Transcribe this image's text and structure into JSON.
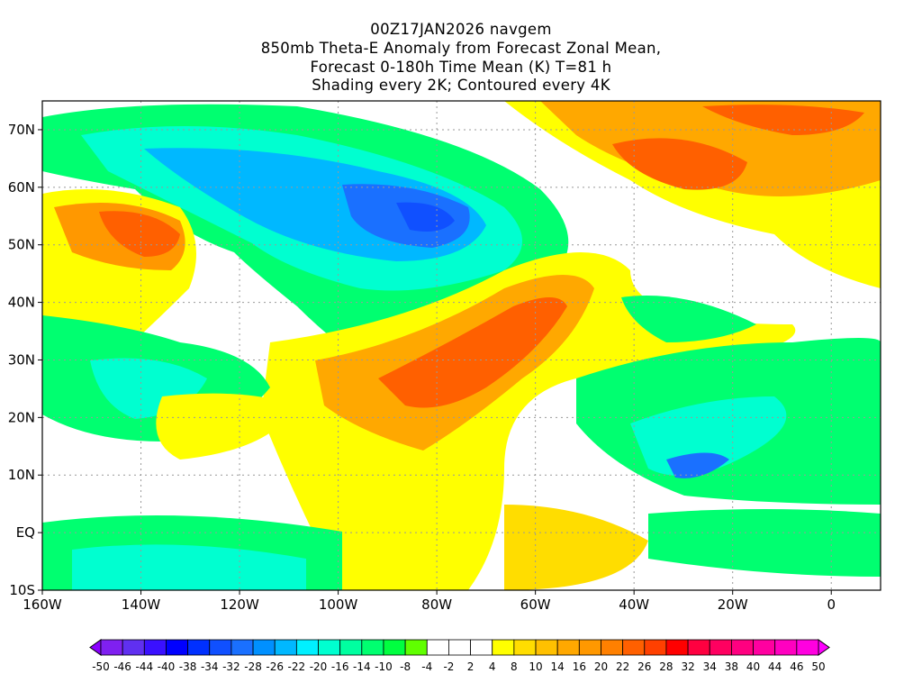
{
  "title": {
    "line1": "00Z17JAN2026 navgem",
    "line2": "850mb Theta-E Anomaly from Forecast Zonal Mean,",
    "line3": "Forecast 0-180h Time Mean (K) T=81 h",
    "line4": "Shading every 2K; Contoured every 4K"
  },
  "axes": {
    "lon_labels": [
      "160W",
      "140W",
      "120W",
      "100W",
      "80W",
      "60W",
      "40W",
      "20W",
      "0"
    ],
    "lon_values": [
      -160,
      -140,
      -120,
      -100,
      -80,
      -60,
      -40,
      -20,
      0
    ],
    "lat_labels": [
      "70N",
      "60N",
      "50N",
      "40N",
      "30N",
      "20N",
      "10N",
      "EQ",
      "10S"
    ],
    "lat_values": [
      70,
      60,
      50,
      40,
      30,
      20,
      10,
      0,
      -10
    ],
    "lon_range": [
      -160,
      10
    ],
    "lat_range": [
      -10,
      75
    ]
  },
  "colorbar": {
    "labels": [
      "-50",
      "-46",
      "-44",
      "-40",
      "-38",
      "-34",
      "-32",
      "-28",
      "-26",
      "-22",
      "-20",
      "-16",
      "-14",
      "-10",
      "-8",
      "-4",
      "-2",
      "2",
      "4",
      "8",
      "10",
      "14",
      "16",
      "20",
      "22",
      "26",
      "28",
      "32",
      "34",
      "38",
      "40",
      "44",
      "46",
      "50"
    ],
    "colors": [
      "#7f20f0",
      "#6030f0",
      "#3a10ff",
      "#0000ff",
      "#0030ff",
      "#1050ff",
      "#1a70ff",
      "#0090ff",
      "#00b8ff",
      "#00f0ff",
      "#00ffd0",
      "#00ffa0",
      "#00ff70",
      "#00ff40",
      "#60ff00",
      "#ffffff",
      "#ffffff",
      "#ffffff",
      "#ffff00",
      "#ffdd00",
      "#ffc000",
      "#ffa800",
      "#ff9800",
      "#ff8000",
      "#ff6000",
      "#ff4000",
      "#ff0000",
      "#ff0040",
      "#ff0060",
      "#ff0080",
      "#ff00a0",
      "#ff00c0",
      "#ff00e0"
    ],
    "low_color": "#8a00ff",
    "high_color": "#ff00ff"
  }
}
